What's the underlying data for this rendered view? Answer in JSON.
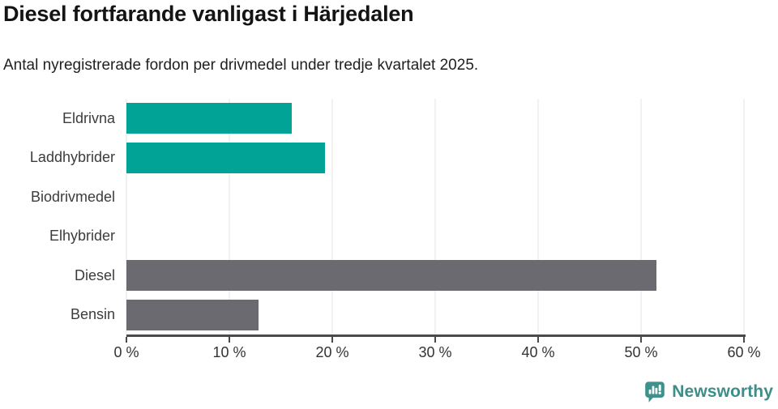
{
  "chart_data": {
    "type": "bar",
    "orientation": "horizontal",
    "title": "Diesel fortfarande vanligast i Härjedalen",
    "subtitle": "Antal nyregistrerade fordon per drivmedel under tredje kvartalet 2025.",
    "categories": [
      "Eldrivna",
      "Laddhybrider",
      "Biodrivmedel",
      "Elhybrider",
      "Diesel",
      "Bensin"
    ],
    "values": [
      16.1,
      19.3,
      0,
      0,
      51.5,
      12.8
    ],
    "unit": "%",
    "bar_colors": [
      "#00a396",
      "#00a396",
      "#00a396",
      "#00a396",
      "#6c6a71",
      "#6c6a71"
    ],
    "xlabel": "",
    "ylabel": "",
    "xlim": [
      0,
      60
    ],
    "xticks": {
      "values": [
        0,
        10,
        20,
        30,
        40,
        50,
        60
      ],
      "labels": [
        "0 %",
        "10 %",
        "20 %",
        "30 %",
        "40 %",
        "50 %",
        "60 %"
      ]
    },
    "grid": "vertical",
    "legend": "none"
  },
  "footer": {
    "brand": "Newsworthy",
    "logo_icon": "newsworthy-chart-bubble-icon"
  },
  "colors": {
    "teal_bar": "#00a396",
    "gray_bar": "#6c6a71",
    "gridline": "#e4e4e4",
    "axis": "#4a4a4a",
    "brand_teal": "#3d8e89",
    "background": "#ffffff"
  }
}
